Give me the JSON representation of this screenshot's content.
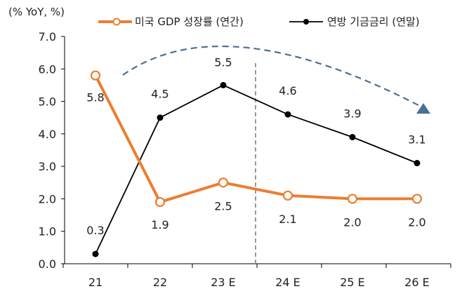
{
  "chart_data": {
    "type": "line",
    "ylabel": "(% YoY, %)",
    "categories": [
      "21",
      "22",
      "23 E",
      "24 E",
      "25 E",
      "26 E"
    ],
    "ylim": [
      0,
      7
    ],
    "yticks": [
      "0.0",
      "1.0",
      "2.0",
      "3.0",
      "4.0",
      "5.0",
      "6.0",
      "7.0"
    ],
    "grid": false,
    "legend_position": "top",
    "forecast_divider_after": "23 E",
    "series": [
      {
        "name": "미국 GDP 성장률 (연간)",
        "values": [
          5.8,
          1.9,
          2.5,
          2.1,
          2.0,
          2.0
        ],
        "labels": [
          "5.8",
          "1.9",
          "2.5",
          "2.1",
          "2.0",
          "2.0"
        ],
        "color": "#ED7D31",
        "marker": "hollow-circle"
      },
      {
        "name": "연방 기금금리 (연말)",
        "values": [
          0.3,
          4.5,
          5.5,
          4.6,
          3.9,
          3.1
        ],
        "labels": [
          "0.3",
          "4.5",
          "5.5",
          "4.6",
          "3.9",
          "3.1"
        ],
        "color": "#000000",
        "marker": "filled-circle"
      }
    ],
    "trend_arrow_color": "#4A6F96"
  }
}
